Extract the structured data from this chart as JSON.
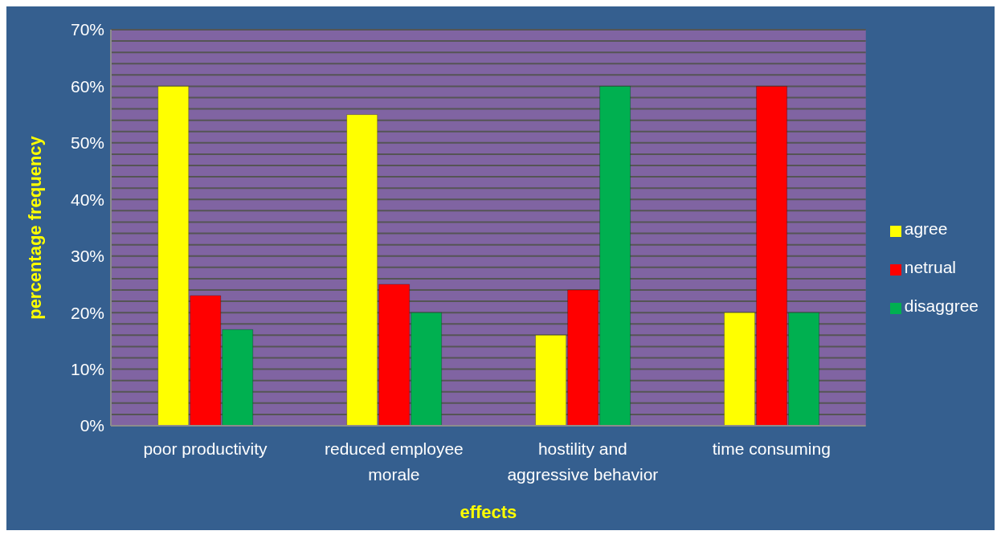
{
  "chart_data": {
    "type": "bar",
    "xlabel": "effects",
    "ylabel": "percentage frequency",
    "categories": [
      "poor productivity",
      "reduced employee morale",
      "hostility and aggressive behavior",
      "time consuming"
    ],
    "series": [
      {
        "name": "agree",
        "color": "#ffff00",
        "values": [
          60,
          55,
          16,
          20
        ]
      },
      {
        "name": "netrual",
        "color": "#ff0000",
        "values": [
          23,
          25,
          24,
          60
        ]
      },
      {
        "name": "disaggree",
        "color": "#00b050",
        "values": [
          17,
          20,
          60,
          20
        ]
      }
    ],
    "ylim": [
      0,
      70
    ],
    "yticks": [
      {
        "value": 0,
        "label": "0%"
      },
      {
        "value": 2,
        "label": null
      },
      {
        "value": 4,
        "label": null
      },
      {
        "value": 6,
        "label": null
      },
      {
        "value": 8,
        "label": null
      },
      {
        "value": 10,
        "label": "10%"
      },
      {
        "value": 12,
        "label": null
      },
      {
        "value": 14,
        "label": null
      },
      {
        "value": 16,
        "label": null
      },
      {
        "value": 18,
        "label": null
      },
      {
        "value": 20,
        "label": "20%"
      },
      {
        "value": 22,
        "label": null
      },
      {
        "value": 24,
        "label": null
      },
      {
        "value": 26,
        "label": null
      },
      {
        "value": 28,
        "label": null
      },
      {
        "value": 30,
        "label": "30%"
      },
      {
        "value": 32,
        "label": null
      },
      {
        "value": 34,
        "label": null
      },
      {
        "value": 36,
        "label": null
      },
      {
        "value": 38,
        "label": null
      },
      {
        "value": 40,
        "label": "40%"
      },
      {
        "value": 42,
        "label": null
      },
      {
        "value": 44,
        "label": null
      },
      {
        "value": 46,
        "label": null
      },
      {
        "value": 48,
        "label": null
      },
      {
        "value": 50,
        "label": "50%"
      },
      {
        "value": 52,
        "label": null
      },
      {
        "value": 54,
        "label": null
      },
      {
        "value": 56,
        "label": null
      },
      {
        "value": 58,
        "label": null
      },
      {
        "value": 60,
        "label": "60%"
      },
      {
        "value": 62,
        "label": null
      },
      {
        "value": 64,
        "label": null
      },
      {
        "value": 66,
        "label": null
      },
      {
        "value": 68,
        "label": null
      },
      {
        "value": 70,
        "label": "70%"
      }
    ],
    "grid": "y",
    "legend": "right"
  }
}
